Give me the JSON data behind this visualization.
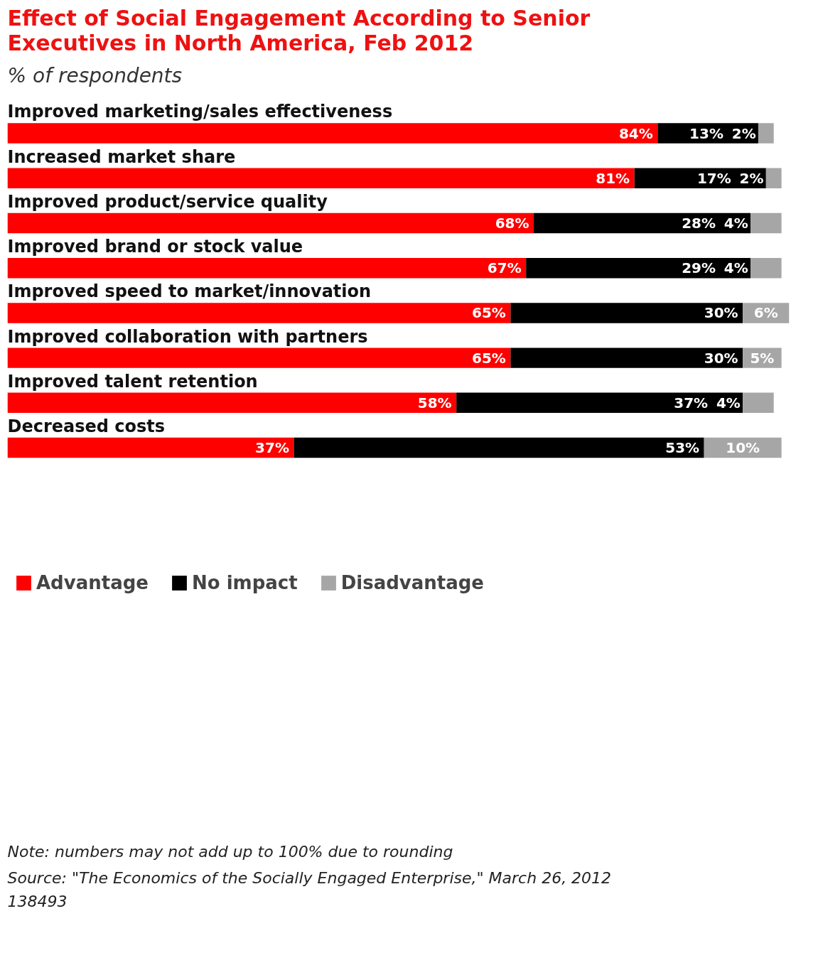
{
  "chart_data": {
    "type": "bar",
    "orientation": "horizontal",
    "stacked": true,
    "title": "Effect of Social Engagement According to Senior Executives in North America, Feb 2012",
    "subtitle": "% of respondents",
    "categories": [
      "Improved marketing/sales effectiveness",
      "Increased market share",
      "Improved product/service quality",
      "Improved brand or stock value",
      "Improved speed to market/innovation",
      "Improved collaboration with partners",
      "Improved talent retention",
      "Decreased costs"
    ],
    "series": [
      {
        "name": "Advantage",
        "color": "#ff0000",
        "values": [
          84,
          81,
          68,
          67,
          65,
          65,
          58,
          37
        ],
        "value_labels": [
          "84%",
          "81%",
          "68%",
          "67%",
          "65%",
          "65%",
          "58%",
          "37%"
        ]
      },
      {
        "name": "No impact",
        "color": "#000000",
        "values": [
          13,
          17,
          28,
          29,
          30,
          30,
          37,
          53
        ],
        "value_labels": [
          "13%",
          "17%",
          "28%",
          "29%",
          "30%",
          "30%",
          "37%",
          "53%"
        ]
      },
      {
        "name": "Disadvantage",
        "color": "#a6a6a6",
        "values": [
          2,
          2,
          4,
          4,
          6,
          5,
          4,
          10
        ],
        "value_labels": [
          "2%",
          "2%",
          "4%",
          "4%",
          "6%",
          "5%",
          "4%",
          "10%"
        ]
      }
    ],
    "xlim": [
      0,
      101
    ],
    "tick_labels": "y",
    "grid": false,
    "legend": "bottom",
    "annotations": [
      "Note: numbers may not add up to 100% due to rounding",
      "Source: \"The Economics of the Socially Engaged Enterprise,\" March 26, 2012",
      "138493"
    ]
  }
}
